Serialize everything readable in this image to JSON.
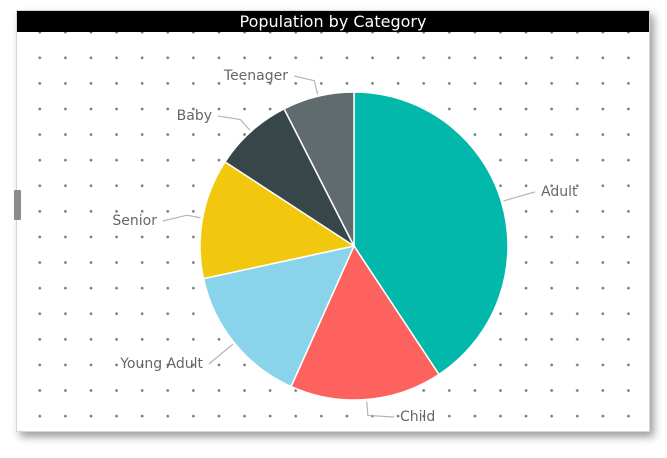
{
  "visual": {
    "title": "Population by Category"
  },
  "chart_data": {
    "type": "pie",
    "title": "Population by Category",
    "start_angle_deg": 0,
    "direction": "clockwise",
    "slices": [
      {
        "label": "Adult",
        "value": 40.7,
        "color": "#01B8AA"
      },
      {
        "label": "Child",
        "value": 16.0,
        "color": "#FD625E"
      },
      {
        "label": "Young Adult",
        "value": 14.9,
        "color": "#8AD4EB"
      },
      {
        "label": "Senior",
        "value": 12.6,
        "color": "#F2C80F"
      },
      {
        "label": "Baby",
        "value": 8.3,
        "color": "#374649"
      },
      {
        "label": "Teenager",
        "value": 7.5,
        "color": "#5F6B6D"
      }
    ]
  }
}
